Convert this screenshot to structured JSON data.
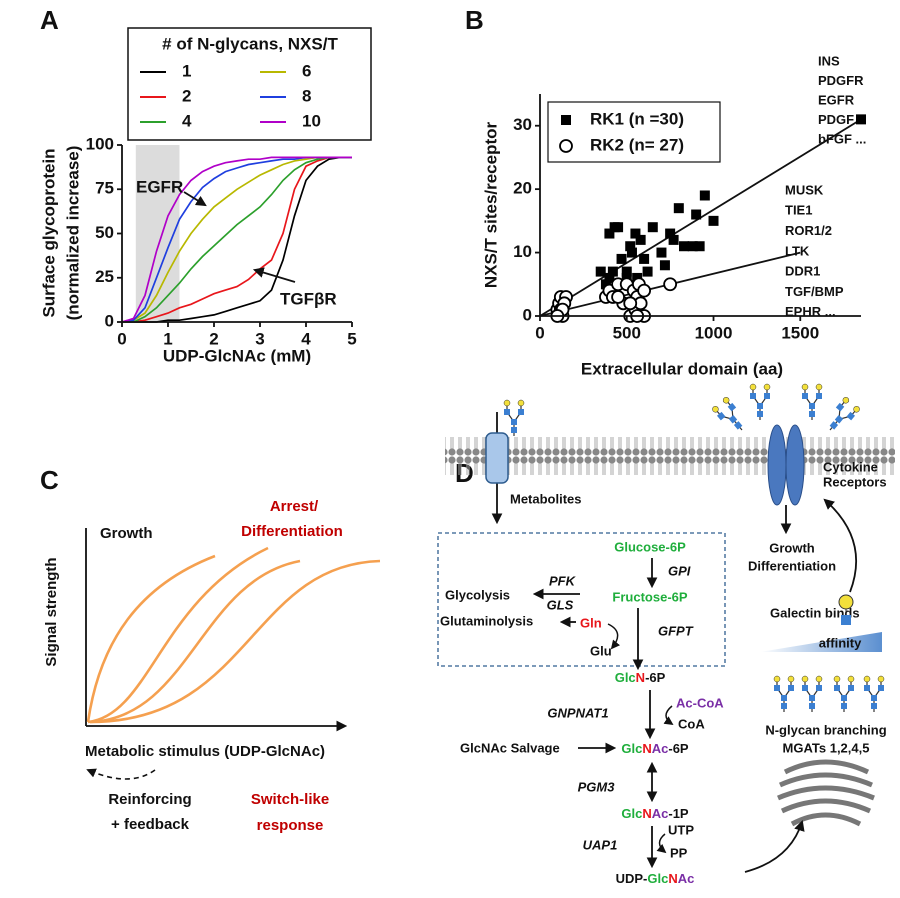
{
  "chart_data": [
    {
      "type": "line",
      "panel_label": "A",
      "legend_title": "# of N-glycans, NXS/T",
      "ylabel": [
        "Surface glycoprotein",
        "(normalized increase)"
      ],
      "xlabel": "UDP-GlcNAc (mM)",
      "xlim": [
        0,
        5
      ],
      "xticks": [
        0,
        1,
        2,
        3,
        4,
        5
      ],
      "ylim": [
        0,
        100
      ],
      "yticks": [
        0,
        25,
        50,
        75,
        100
      ],
      "highlight_x": [
        0.3,
        1.25
      ],
      "annotations": [
        "EGFR",
        "TGFβR"
      ],
      "x": [
        0,
        0.25,
        0.5,
        0.75,
        1,
        1.25,
        1.5,
        1.75,
        2,
        2.25,
        2.5,
        2.75,
        3,
        3.25,
        3.5,
        3.75,
        4,
        4.25,
        4.5,
        4.75,
        5
      ],
      "series": [
        {
          "name": "1",
          "color": "#000000",
          "values": [
            0,
            0,
            0,
            0,
            1,
            1,
            2,
            3,
            4,
            6,
            8,
            10,
            12,
            18,
            35,
            60,
            80,
            88,
            92,
            93,
            93
          ]
        },
        {
          "name": "2",
          "color": "#e8161b",
          "values": [
            0,
            0,
            1,
            3,
            5,
            8,
            10,
            13,
            16,
            18,
            20,
            24,
            30,
            35,
            50,
            75,
            88,
            91,
            93,
            93,
            93
          ]
        },
        {
          "name": "4",
          "color": "#2ca02c",
          "values": [
            0,
            0,
            3,
            8,
            15,
            22,
            30,
            37,
            43,
            49,
            55,
            60,
            65,
            72,
            80,
            86,
            90,
            92,
            93,
            93,
            93
          ]
        },
        {
          "name": "6",
          "color": "#b8b800",
          "values": [
            0,
            1,
            5,
            15,
            28,
            40,
            50,
            58,
            65,
            70,
            75,
            79,
            83,
            86,
            89,
            91,
            92,
            93,
            93,
            93,
            93
          ]
        },
        {
          "name": "8",
          "color": "#1f3fdf",
          "values": [
            0,
            1,
            8,
            25,
            42,
            58,
            68,
            76,
            81,
            85,
            87,
            89,
            90,
            91,
            92,
            92,
            93,
            93,
            93,
            93,
            93
          ]
        },
        {
          "name": "10",
          "color": "#b000c8",
          "values": [
            0,
            2,
            15,
            40,
            60,
            72,
            80,
            85,
            88,
            90,
            91,
            92,
            92,
            93,
            93,
            93,
            93,
            93,
            93,
            93,
            93
          ]
        }
      ]
    },
    {
      "type": "scatter",
      "panel_label": "B",
      "ylabel": "NXS/T sites/receptor",
      "xlabel": "Extracellular domain (aa)",
      "xlim": [
        0,
        1850
      ],
      "xticks": [
        0,
        500,
        1000,
        1500
      ],
      "ylim": [
        0,
        35
      ],
      "yticks": [
        0,
        10,
        20,
        30
      ],
      "series": [
        {
          "name": "RK1  (n =30)",
          "marker": "square",
          "color": "#000000",
          "x": [
            350,
            380,
            400,
            420,
            430,
            450,
            400,
            470,
            500,
            520,
            530,
            550,
            560,
            580,
            600,
            620,
            650,
            700,
            720,
            750,
            770,
            800,
            830,
            880,
            900,
            920,
            950,
            1000,
            1850,
            500
          ],
          "values": [
            7,
            5,
            6,
            7,
            14,
            14,
            13,
            9,
            6,
            11,
            10,
            13,
            6,
            12,
            9,
            7,
            14,
            10,
            8,
            13,
            12,
            17,
            11,
            11,
            16,
            11,
            19,
            15,
            31,
            7
          ]
        },
        {
          "name": "RK2  (n= 27)",
          "marker": "circle",
          "color": "#000000",
          "x": [
            100,
            110,
            120,
            130,
            150,
            120,
            140,
            380,
            400,
            420,
            450,
            480,
            500,
            520,
            540,
            550,
            560,
            570,
            580,
            600,
            600,
            520,
            750,
            450,
            560,
            130,
            100
          ],
          "values": [
            1,
            2,
            3,
            0,
            3,
            1,
            2,
            3,
            4,
            3,
            5,
            2,
            5,
            0,
            4,
            1,
            3,
            5,
            2,
            0,
            4,
            2,
            5,
            3,
            0,
            1,
            0
          ]
        }
      ],
      "fit_lines": [
        {
          "x": [
            0,
            1850
          ],
          "y": [
            0,
            31
          ]
        },
        {
          "x": [
            0,
            1500
          ],
          "y": [
            0,
            10
          ]
        }
      ],
      "rk1_genes": [
        "INS",
        "PDGFR",
        "EGFR",
        "PDGF",
        "bFGF ..."
      ],
      "rk2_genes": [
        "MUSK",
        "TIE1",
        "ROR1/2",
        "LTK",
        "DDR1",
        "TGF/BMP",
        "EPHR ..."
      ]
    }
  ],
  "diagram": {
    "panel_c": {
      "label": "C",
      "ylabel": "Signal  strength",
      "growth": "Growth",
      "arrest": [
        "Arrest/",
        "Differentiation"
      ],
      "xlabel": "Metabolic stimulus (UDP-GlcNAc)",
      "feedback": [
        "Reinforcing",
        "+ feedback"
      ],
      "response": [
        "Switch-like",
        "response"
      ]
    },
    "panel_d": {
      "label": "D",
      "metabolites": "Metabolites",
      "receptors": [
        "Cytokine",
        "Receptors"
      ],
      "outcome": [
        "Growth",
        "Differentiation"
      ],
      "glucose_6p": "Glucose-6P",
      "gpi": "GPI",
      "fructose_6p": "Fructose-6P",
      "pfk": "PFK",
      "gls": "GLS",
      "glycolysis": "Glycolysis",
      "glutaminolysis": "Glutaminolysis",
      "gln": "Gln",
      "gfpt": "GFPT",
      "glu": "Glu",
      "glcn_6p": [
        "Glc",
        "N",
        "-6P"
      ],
      "ac_coa": "Ac-CoA",
      "coa": "CoA",
      "gnpnat1": "GNPNAT1",
      "salvage": "GlcNAc Salvage",
      "glcnac_6p": [
        "Glc",
        "N",
        "Ac",
        "-6P"
      ],
      "pgm3": "PGM3",
      "glcnac_1p": [
        "Glc",
        "N",
        "Ac",
        "-1P"
      ],
      "utp": "UTP",
      "pp": "PP",
      "uap1": "UAP1",
      "udp_glcnac": [
        "UDP-",
        "Glc",
        "N",
        "Ac"
      ],
      "galectin": "Galectin binds",
      "affinity": "affinity",
      "branching": "N-glycan branching",
      "mgats": "MGATs 1,2,4,5"
    }
  }
}
